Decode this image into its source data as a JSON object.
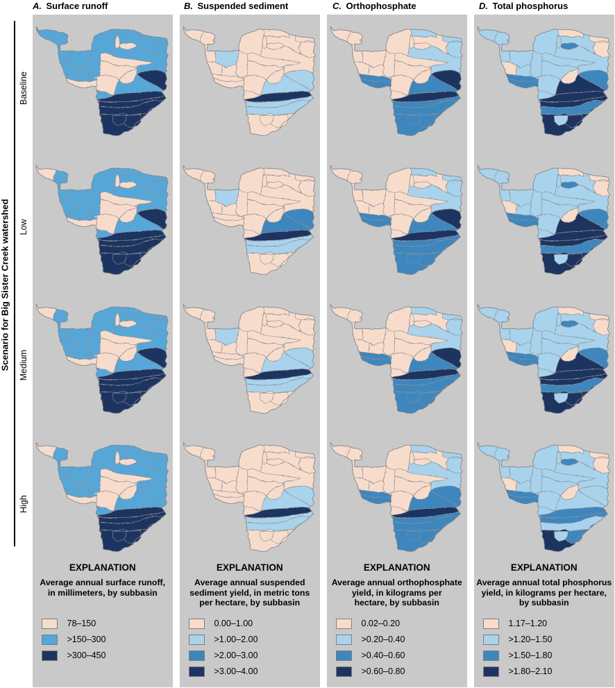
{
  "figure": {
    "left_axis_label": "Scenario for Big Sister Creek watershed",
    "row_labels": [
      "Baseline",
      "Low",
      "Medium",
      "High"
    ]
  },
  "columns": [
    {
      "letter": "A.",
      "title": "Surface runoff",
      "legend_title": "EXPLANATION",
      "legend_sub": [
        "Average annual surface runoff,",
        "in millimeters, by subbasin"
      ],
      "classes": [
        {
          "label": "78–150",
          "color": "#f8dccb"
        },
        {
          "label": ">150–300",
          "color": "#56a7d8"
        },
        {
          "label": ">300–450",
          "color": "#1e3460"
        }
      ]
    },
    {
      "letter": "B.",
      "title": "Suspended sediment",
      "legend_title": "EXPLANATION",
      "legend_sub": [
        "Average annual suspended",
        "sediment yield, in metric tons",
        "per hectare, by subbasin"
      ],
      "classes": [
        {
          "label": "0.00–1.00",
          "color": "#f8dccb"
        },
        {
          "label": ">1.00–2.00",
          "color": "#a9d3ec"
        },
        {
          "label": ">2.00–3.00",
          "color": "#3e86be"
        },
        {
          "label": ">3.00–4.00",
          "color": "#1e3460"
        }
      ]
    },
    {
      "letter": "C.",
      "title": "Orthophosphate",
      "legend_title": "EXPLANATION",
      "legend_sub": [
        "Average annual orthophosphate",
        "yield, in kilograms per",
        "hectare, by subbasin"
      ],
      "classes": [
        {
          "label": "0.02–0.20",
          "color": "#f8dccb"
        },
        {
          "label": ">0.20–0.40",
          "color": "#a9d3ec"
        },
        {
          "label": ">0.40–0.60",
          "color": "#3e86be"
        },
        {
          "label": ">0.60–0.80",
          "color": "#1e3460"
        }
      ]
    },
    {
      "letter": "D.",
      "title": "Total phosphorus",
      "legend_title": "EXPLANATION",
      "legend_sub": [
        "Average annual total phosphorus",
        "yield, in kilograms per hectare,",
        "by subbasin"
      ],
      "classes": [
        {
          "label": "1.17–1.20",
          "color": "#f8dccb"
        },
        {
          "label": ">1.20–1.50",
          "color": "#a9d3ec"
        },
        {
          "label": ">1.50–1.80",
          "color": "#3e86be"
        },
        {
          "label": ">1.80–2.10",
          "color": "#1e3460"
        }
      ]
    }
  ],
  "map_data": {
    "type": "choropleth",
    "subbasins": [
      "s1",
      "s2",
      "s3",
      "s4",
      "s5a",
      "s5mid",
      "s5c",
      "s7",
      "s8",
      "s9w",
      "s9e",
      "s9b",
      "wl",
      "s10",
      "s11",
      "s12a",
      "s12b",
      "s13",
      "s14t",
      "s15",
      "chute",
      "wing",
      "s16a",
      "s16b",
      "r1",
      "r2",
      "r3w",
      "r3e",
      "r4w",
      "r4e"
    ],
    "class_colors": {
      "A": {
        "p": "#f8dccb",
        "l": "#a9d3ec",
        "m": "#56a7d8",
        "n": "#1e3460"
      },
      "B": {
        "p": "#f8dccb",
        "l": "#a9d3ec",
        "m": "#3e86be",
        "n": "#1e3460"
      },
      "C": {
        "p": "#f8dccb",
        "l": "#a9d3ec",
        "m": "#3e86be",
        "n": "#1e3460"
      },
      "D": {
        "p": "#f8dccb",
        "l": "#a9d3ec",
        "m": "#3e86be",
        "n": "#1e3460"
      }
    },
    "maps": {
      "A": [
        {
          "s1": "m",
          "s2": "m",
          "s3": "m",
          "s4": "m",
          "s5a": "m",
          "s5mid": "m",
          "s5c": "m",
          "s7": "m",
          "s8": "m",
          "s9w": "m",
          "s9e": "m",
          "s9b": "m",
          "wl": "p",
          "s10": "p",
          "s11": "p",
          "s12a": "p",
          "s12b": "p",
          "s13": "p",
          "s14t": "p",
          "s15": "m",
          "chute": "m",
          "wing": "n",
          "s16a": "m",
          "s16b": "n",
          "r1": "n",
          "r2": "n",
          "r4w": "n",
          "r4e": "n",
          "r3w": "n",
          "r3e": "n"
        },
        {
          "s1": "p",
          "s2": "m",
          "s3": "m",
          "s4": "m",
          "s5a": "m",
          "s5mid": "m",
          "s5c": "m",
          "s7": "m",
          "s8": "m",
          "s9w": "m",
          "s9e": "m",
          "s9b": "m",
          "wl": "p",
          "s10": "p",
          "s11": "p",
          "s12a": "p",
          "s12b": "p",
          "s13": "p",
          "s14t": "p",
          "s15": "m",
          "chute": "m",
          "wing": "n",
          "s16a": "m",
          "s16b": "n",
          "r1": "n",
          "r2": "n",
          "r4w": "n",
          "r4e": "n",
          "r3w": "n",
          "r3e": "n"
        },
        {
          "s1": "p",
          "s2": "m",
          "s3": "m",
          "s4": "m",
          "s5a": "m",
          "s5mid": "m",
          "s5c": "m",
          "s7": "m",
          "s8": "m",
          "s9w": "m",
          "s9e": "m",
          "s9b": "m",
          "wl": "p",
          "s10": "p",
          "s11": "p",
          "s12a": "p",
          "s12b": "p",
          "s13": "p",
          "s14t": "p",
          "s15": "m",
          "chute": "m",
          "wing": "n",
          "s16a": "m",
          "s16b": "n",
          "r1": "n",
          "r2": "n",
          "r4w": "n",
          "r4e": "n",
          "r3w": "n",
          "r3e": "n"
        },
        {
          "s1": "p",
          "s2": "m",
          "s3": "m",
          "s4": "m",
          "s5a": "m",
          "s5mid": "m",
          "s5c": "m",
          "s7": "m",
          "s8": "m",
          "s9w": "m",
          "s9e": "m",
          "s9b": "m",
          "wl": "p",
          "s10": "p",
          "s11": "p",
          "s12a": "p",
          "s12b": "p",
          "s13": "p",
          "s14t": "p",
          "s15": "m",
          "chute": "m",
          "wing": "m",
          "s16a": "m",
          "s16b": "n",
          "r1": "n",
          "r2": "n",
          "r4w": "n",
          "r4e": "n",
          "r3w": "n",
          "r3e": "n"
        }
      ],
      "B": [
        {
          "s1": "p",
          "s2": "p",
          "s3": "p",
          "s4": "p",
          "s5a": "p",
          "s5mid": "p",
          "s5c": "p",
          "s7": "l",
          "s8": "p",
          "s9w": "p",
          "s9e": "p",
          "s9b": "p",
          "wl": "p",
          "s10": "p",
          "s11": "p",
          "s12a": "p",
          "s12b": "p",
          "s13": "p",
          "s14t": "p",
          "s15": "p",
          "chute": "p",
          "wing": "l",
          "s16a": "l",
          "s16b": "n",
          "r1": "l",
          "r2": "l",
          "r4w": "p",
          "r4e": "p",
          "r3w": "p",
          "r3e": "p"
        },
        {
          "s1": "p",
          "s2": "p",
          "s3": "p",
          "s4": "p",
          "s5a": "p",
          "s5mid": "p",
          "s5c": "p",
          "s7": "l",
          "s8": "p",
          "s9w": "p",
          "s9e": "p",
          "s9b": "p",
          "wl": "p",
          "s10": "p",
          "s11": "p",
          "s12a": "p",
          "s12b": "p",
          "s13": "p",
          "s14t": "p",
          "s15": "p",
          "chute": "p",
          "wing": "m",
          "s16a": "m",
          "s16b": "n",
          "r1": "l",
          "r2": "l",
          "r4w": "p",
          "r4e": "p",
          "r3w": "p",
          "r3e": "p"
        },
        {
          "s1": "p",
          "s2": "p",
          "s3": "p",
          "s4": "p",
          "s5a": "p",
          "s5mid": "p",
          "s5c": "p",
          "s7": "l",
          "s8": "p",
          "s9w": "p",
          "s9e": "p",
          "s9b": "p",
          "wl": "p",
          "s10": "p",
          "s11": "p",
          "s12a": "p",
          "s12b": "p",
          "s13": "p",
          "s14t": "p",
          "s15": "p",
          "chute": "p",
          "wing": "l",
          "s16a": "l",
          "s16b": "n",
          "r1": "l",
          "r2": "l",
          "r4w": "p",
          "r4e": "p",
          "r3w": "p",
          "r3e": "p"
        },
        {
          "s1": "p",
          "s2": "p",
          "s3": "p",
          "s4": "p",
          "s5a": "p",
          "s5mid": "p",
          "s5c": "p",
          "s7": "p",
          "s8": "p",
          "s9w": "p",
          "s9e": "p",
          "s9b": "p",
          "wl": "p",
          "s10": "p",
          "s11": "p",
          "s12a": "p",
          "s12b": "p",
          "s13": "p",
          "s14t": "p",
          "s15": "p",
          "chute": "p",
          "wing": "l",
          "s16a": "l",
          "s16b": "n",
          "r1": "l",
          "r2": "l",
          "r4w": "p",
          "r4e": "p",
          "r3w": "p",
          "r3e": "p"
        }
      ],
      "C": [
        {
          "s1": "p",
          "s2": "p",
          "s3": "p",
          "s4": "p",
          "s5a": "l",
          "s5mid": "p",
          "s5c": "l",
          "s7": "p",
          "s8": "p",
          "s9w": "p",
          "s9e": "p",
          "s9b": "m",
          "wl": "m",
          "s10": "p",
          "s11": "p",
          "s12a": "p",
          "s12b": "p",
          "s13": "p",
          "s14t": "p",
          "s15": "l",
          "chute": "p",
          "wing": "n",
          "s16a": "m",
          "s16b": "n",
          "r1": "m",
          "r2": "m",
          "r4w": "m",
          "r4e": "m",
          "r3w": "m",
          "r3e": "m"
        },
        {
          "s1": "p",
          "s2": "p",
          "s3": "p",
          "s4": "p",
          "s5a": "l",
          "s5mid": "p",
          "s5c": "l",
          "s7": "p",
          "s8": "p",
          "s9w": "p",
          "s9e": "p",
          "s9b": "m",
          "wl": "m",
          "s10": "p",
          "s11": "p",
          "s12a": "p",
          "s12b": "p",
          "s13": "p",
          "s14t": "p",
          "s15": "l",
          "chute": "p",
          "wing": "n",
          "s16a": "m",
          "s16b": "n",
          "r1": "m",
          "r2": "m",
          "r4w": "m",
          "r4e": "m",
          "r3w": "m",
          "r3e": "m"
        },
        {
          "s1": "p",
          "s2": "p",
          "s3": "p",
          "s4": "p",
          "s5a": "l",
          "s5mid": "p",
          "s5c": "l",
          "s7": "p",
          "s8": "p",
          "s9w": "p",
          "s9e": "p",
          "s9b": "m",
          "wl": "m",
          "s10": "p",
          "s11": "p",
          "s12a": "p",
          "s12b": "p",
          "s13": "p",
          "s14t": "p",
          "s15": "l",
          "chute": "p",
          "wing": "n",
          "s16a": "m",
          "s16b": "n",
          "r1": "m",
          "r2": "m",
          "r4w": "m",
          "r4e": "m",
          "r3w": "m",
          "r3e": "m"
        },
        {
          "s1": "p",
          "s2": "p",
          "s3": "p",
          "s4": "p",
          "s5a": "l",
          "s5mid": "p",
          "s5c": "l",
          "s7": "p",
          "s8": "p",
          "s9w": "p",
          "s9e": "p",
          "s9b": "m",
          "wl": "m",
          "s10": "p",
          "s11": "p",
          "s12a": "p",
          "s12b": "p",
          "s13": "p",
          "s14t": "p",
          "s15": "l",
          "chute": "p",
          "wing": "m",
          "s16a": "m",
          "s16b": "n",
          "r1": "m",
          "r2": "m",
          "r4w": "m",
          "r4e": "m",
          "r3w": "m",
          "r3e": "m"
        }
      ],
      "D": [
        {
          "s1": "l",
          "s2": "l",
          "s3": "l",
          "s4": "l",
          "s5a": "p",
          "s5mid": "l",
          "s5c": "p",
          "s7": "l",
          "s8": "l",
          "s9w": "p",
          "s9e": "l",
          "s9b": "m",
          "wl": "m",
          "s10": "l",
          "s11": "m",
          "s12a": "l",
          "s12b": "l",
          "s13": "l",
          "s14t": "p",
          "s15": "l",
          "chute": "l",
          "wing": "m",
          "s16a": "n",
          "s16b": "n",
          "r1": "n",
          "r2": "m",
          "r4w": "n",
          "r4e": "n",
          "r3w": "l",
          "r3e": "n"
        },
        {
          "s1": "l",
          "s2": "l",
          "s3": "l",
          "s4": "l",
          "s5a": "p",
          "s5mid": "l",
          "s5c": "p",
          "s7": "l",
          "s8": "l",
          "s9w": "p",
          "s9e": "l",
          "s9b": "m",
          "wl": "m",
          "s10": "l",
          "s11": "m",
          "s12a": "l",
          "s12b": "l",
          "s13": "l",
          "s14t": "p",
          "s15": "l",
          "chute": "l",
          "wing": "m",
          "s16a": "n",
          "s16b": "n",
          "r1": "n",
          "r2": "m",
          "r4w": "n",
          "r4e": "n",
          "r3w": "l",
          "r3e": "n"
        },
        {
          "s1": "l",
          "s2": "l",
          "s3": "l",
          "s4": "l",
          "s5a": "p",
          "s5mid": "l",
          "s5c": "p",
          "s7": "l",
          "s8": "l",
          "s9w": "p",
          "s9e": "l",
          "s9b": "m",
          "wl": "m",
          "s10": "l",
          "s11": "m",
          "s12a": "l",
          "s12b": "l",
          "s13": "l",
          "s14t": "p",
          "s15": "l",
          "chute": "l",
          "wing": "m",
          "s16a": "n",
          "s16b": "n",
          "r1": "n",
          "r2": "m",
          "r4w": "n",
          "r4e": "n",
          "r3w": "l",
          "r3e": "n"
        },
        {
          "s1": "l",
          "s2": "l",
          "s3": "l",
          "s4": "l",
          "s5a": "p",
          "s5mid": "l",
          "s5c": "p",
          "s7": "l",
          "s8": "l",
          "s9w": "p",
          "s9e": "l",
          "s9b": "m",
          "wl": "m",
          "s10": "l",
          "s11": "m",
          "s12a": "l",
          "s12b": "l",
          "s13": "l",
          "s14t": "p",
          "s15": "l",
          "chute": "l",
          "wing": "l",
          "s16a": "l",
          "s16b": "m",
          "r1": "m",
          "r2": "l",
          "r4w": "n",
          "r4e": "m",
          "r3w": "l",
          "r3e": "m"
        }
      ]
    }
  }
}
